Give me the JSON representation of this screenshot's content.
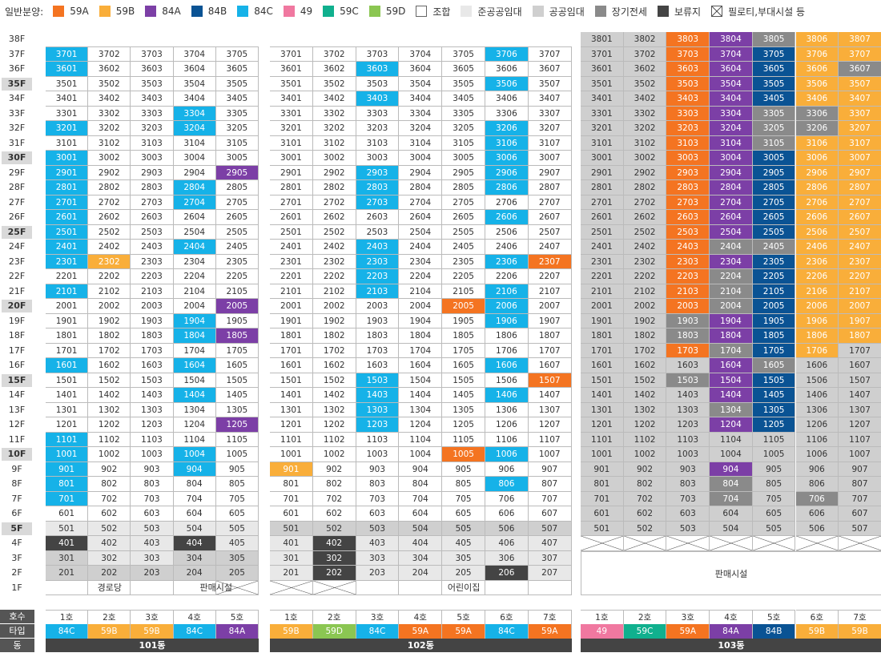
{
  "legend": {
    "title": "일반분양:",
    "items": [
      {
        "key": "59A",
        "label": "59A",
        "color": "#f47421"
      },
      {
        "key": "59B",
        "label": "59B",
        "color": "#f9ae3a"
      },
      {
        "key": "84A",
        "label": "84A",
        "color": "#7c3fa6"
      },
      {
        "key": "84B",
        "label": "84B",
        "color": "#0a5394"
      },
      {
        "key": "84C",
        "label": "84C",
        "color": "#16b2e8"
      },
      {
        "key": "49",
        "label": "49",
        "color": "#f078a0"
      },
      {
        "key": "59C",
        "label": "59C",
        "color": "#10b08e"
      },
      {
        "key": "59D",
        "label": "59D",
        "color": "#8bc652"
      },
      {
        "key": "J",
        "label": "조합",
        "color": "#ffffff"
      },
      {
        "key": "P",
        "label": "준공공임대",
        "color": "#e8e8e8"
      },
      {
        "key": "G",
        "label": "공공임대",
        "color": "#cfcfcf"
      },
      {
        "key": "L",
        "label": "장기전세",
        "color": "#8a8a8a"
      },
      {
        "key": "R",
        "label": "보류지",
        "color": "#444444"
      },
      {
        "key": "X",
        "label": "필로티,부대시설 등",
        "color": "#ffffff"
      }
    ]
  },
  "floors": [
    "38F",
    "37F",
    "36F",
    "35F",
    "34F",
    "33F",
    "32F",
    "31F",
    "30F",
    "29F",
    "28F",
    "27F",
    "26F",
    "25F",
    "24F",
    "23F",
    "22F",
    "21F",
    "20F",
    "19F",
    "18F",
    "17F",
    "16F",
    "15F",
    "14F",
    "13F",
    "12F",
    "11F",
    "10F",
    "9F",
    "8F",
    "7F",
    "6F",
    "5F",
    "4F",
    "3F",
    "2F",
    "1F"
  ],
  "highlight_floors": [
    "35F",
    "30F",
    "25F",
    "20F",
    "15F",
    "10F",
    "5F"
  ],
  "buildings": [
    {
      "dong": "101동",
      "units": [
        "1호",
        "2호",
        "3호",
        "4호",
        "5호"
      ],
      "types": [
        "84C",
        "59B",
        "59B",
        "84C",
        "84A"
      ],
      "top_floor": 37,
      "first_floor_labels": [
        {
          "text": "경로당",
          "span": [
            0,
            2
          ]
        },
        {
          "text": "판매시설",
          "span": [
            3,
            4
          ]
        }
      ],
      "first_floor_x": [
        4
      ],
      "special": {
        "3701": "84C",
        "3601": "84C",
        "3304": "84C",
        "3201": "84C",
        "3204": "84C",
        "3001": "84C",
        "2901": "84C",
        "2905": "84A",
        "2801": "84C",
        "2804": "84C",
        "2701": "84C",
        "2704": "84C",
        "2601": "84C",
        "2501": "84C",
        "2401": "84C",
        "2404": "84C",
        "2301": "84C",
        "2302": "59B",
        "2101": "84C",
        "2005": "84A",
        "1904": "84C",
        "1804": "84C",
        "1805": "84A",
        "1601": "84C",
        "1604": "84C",
        "1404": "84C",
        "1205": "84A",
        "1101": "84C",
        "1001": "84C",
        "1004": "84C",
        "901": "84C",
        "904": "84C",
        "801": "84C",
        "701": "84C",
        "401": "R",
        "404": "R",
        "501": "P",
        "502": "P",
        "503": "P",
        "504": "P",
        "505": "P",
        "402": "P",
        "403": "P",
        "405": "P",
        "301": "G",
        "302": "P",
        "303": "P",
        "304": "G",
        "305": "G",
        "201": "G",
        "202": "G",
        "203": "G",
        "204": "G",
        "205": "G"
      }
    },
    {
      "dong": "102동",
      "units": [
        "1호",
        "2호",
        "3호",
        "4호",
        "5호",
        "6호",
        "7호"
      ],
      "types": [
        "59B",
        "59D",
        "84C",
        "59A",
        "59A",
        "84C",
        "59A"
      ],
      "top_floor": 37,
      "first_floor_labels": [
        {
          "text": "어린이집",
          "span": [
            2,
            6
          ]
        }
      ],
      "first_floor_x": [
        0,
        1
      ],
      "special": {
        "3706": "84C",
        "3603": "84C",
        "3506": "84C",
        "3403": "84C",
        "3206": "84C",
        "3106": "84C",
        "3006": "84C",
        "2903": "84C",
        "2906": "84C",
        "2803": "84C",
        "2806": "84C",
        "2703": "84C",
        "2606": "84C",
        "2403": "84C",
        "2303": "84C",
        "2306": "84C",
        "2307": "59A",
        "2203": "84C",
        "2103": "84C",
        "2106": "84C",
        "2005": "59A",
        "2006": "84C",
        "1906": "84C",
        "1606": "84C",
        "1503": "84C",
        "1507": "59A",
        "1403": "84C",
        "1406": "84C",
        "1303": "84C",
        "1203": "84C",
        "1005": "59A",
        "1006": "84C",
        "901": "59B",
        "806": "84C",
        "501": "G",
        "502": "G",
        "503": "G",
        "504": "G",
        "505": "G",
        "506": "G",
        "507": "G",
        "401": "P",
        "402": "R",
        "403": "P",
        "404": "P",
        "405": "P",
        "406": "P",
        "407": "P",
        "301": "P",
        "302": "R",
        "303": "P",
        "304": "P",
        "305": "P",
        "306": "P",
        "307": "P",
        "201": "P",
        "202": "R",
        "203": "P",
        "204": "P",
        "205": "P",
        "206": "R",
        "207": "P"
      }
    },
    {
      "dong": "103동",
      "units": [
        "1호",
        "2호",
        "3호",
        "4호",
        "5호",
        "6호",
        "7호"
      ],
      "types": [
        "49",
        "59C",
        "59A",
        "84A",
        "84B",
        "59B",
        "59B"
      ],
      "top_floor": 38,
      "first_floor_labels": [],
      "commercial_label": "판매시설",
      "special": {}
    }
  ],
  "row_heads": {
    "unit": "호수",
    "type": "타입",
    "dong": "동"
  }
}
